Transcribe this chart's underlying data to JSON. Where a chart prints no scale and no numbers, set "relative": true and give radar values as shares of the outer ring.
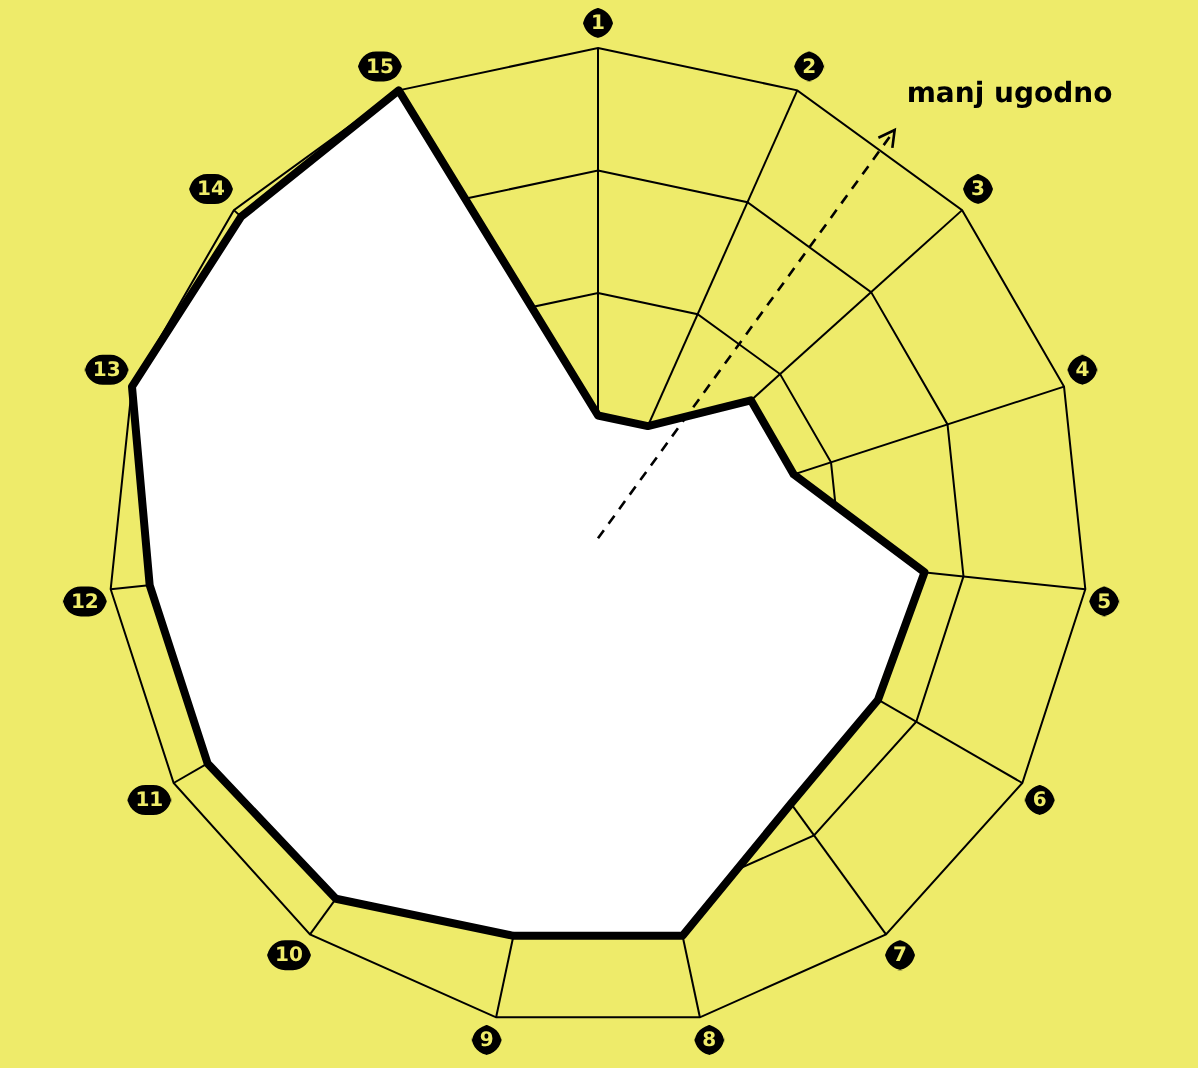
{
  "chart_data": {
    "type": "radar",
    "relative": true,
    "categories": [
      "1",
      "2",
      "3",
      "4",
      "5",
      "6",
      "7",
      "8",
      "9",
      "10",
      "11",
      "12",
      "13",
      "14",
      "15"
    ],
    "series": [
      {
        "color": "#000000",
        "values": [
          0.25,
          0.25,
          0.42,
          0.42,
          0.67,
          0.66,
          0.67,
          0.83,
          0.83,
          0.91,
          0.92,
          0.92,
          1.0,
          0.98,
          1.0
        ]
      }
    ],
    "annotations": [
      "manj ugodno"
    ],
    "grid": true,
    "legend": false,
    "marker": "none",
    "line_style": "solid"
  }
}
